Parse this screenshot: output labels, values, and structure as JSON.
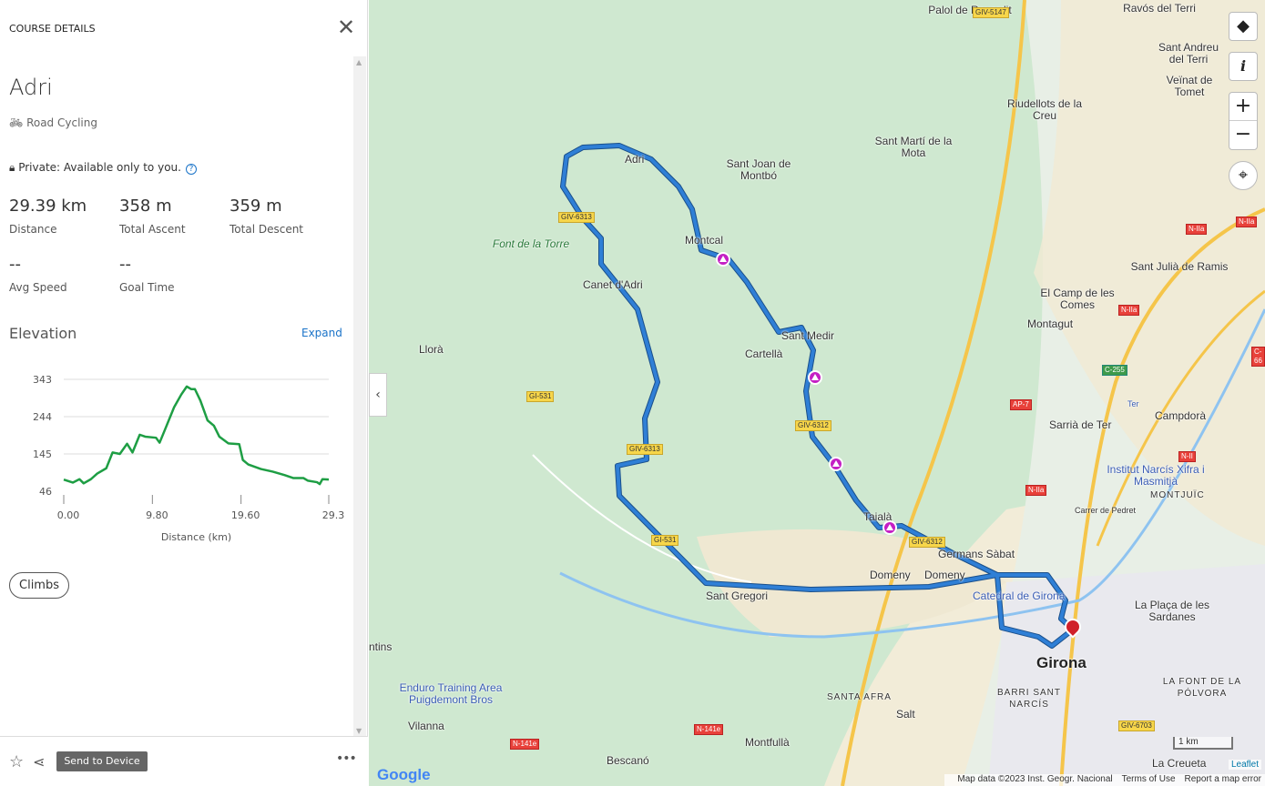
{
  "panel": {
    "header": "COURSE DETAILS",
    "title": "Adri",
    "sport": "Road Cycling",
    "privacy": "Private: Available only to you.",
    "stats": [
      {
        "value": "29.39 km",
        "label": "Distance"
      },
      {
        "value": "358 m",
        "label": "Total Ascent"
      },
      {
        "value": "359 m",
        "label": "Total Descent"
      },
      {
        "value": "--",
        "label": "Avg Speed"
      },
      {
        "value": "--",
        "label": "Goal Time"
      }
    ],
    "elevation_title": "Elevation",
    "expand": "Expand",
    "climbs": "Climbs",
    "send_to_device": "Send to Device"
  },
  "chart_data": {
    "type": "line",
    "xlabel": "Distance (km)",
    "ylabel": "",
    "xlim": [
      0,
      29.3
    ],
    "ylim": [
      46,
      343
    ],
    "x_ticks": [
      "0.00",
      "9.80",
      "19.60",
      "29.3"
    ],
    "y_ticks": [
      "343",
      "244",
      "145",
      "46"
    ],
    "color": "#1e9e44",
    "grid": true,
    "x": [
      0,
      1.0,
      1.74,
      2.2,
      3.0,
      3.7,
      4.7,
      5.4,
      6.2,
      7.0,
      7.6,
      8.4,
      9.0,
      10.2,
      10.6,
      11.2,
      12.2,
      13.0,
      13.6,
      14.1,
      14.5,
      15.1,
      15.9,
      16.6,
      17.2,
      18.2,
      19.4,
      19.8,
      20.4,
      21.8,
      23.1,
      24.4,
      25.4,
      26.5,
      27.0,
      28.0,
      28.3,
      28.6,
      29.3
    ],
    "y": [
      77,
      69,
      78,
      67,
      78,
      93,
      107,
      149,
      145,
      172,
      149,
      196,
      191,
      188,
      175,
      210,
      269,
      303,
      324,
      317,
      317,
      287,
      234,
      220,
      191,
      173,
      171,
      129,
      117,
      105,
      98,
      89,
      81,
      81,
      74,
      70,
      65,
      78,
      77
    ]
  },
  "map": {
    "labels": [
      "Palol de Revardit",
      "Ravós del Terri",
      "Sant Andreu del Terri",
      "Veïnat de Tomet",
      "Riudellots de la Creu",
      "Sant Martí de la Mota",
      "Sant Joan de Montbó",
      "Adri",
      "Montcal",
      "Font de la Torre",
      "Canet d'Adri",
      "Llorà",
      "Sant Medir",
      "Cartellà",
      "El Camp de les Comes",
      "Montagut",
      "Sant Julià de Ramis",
      "Sarrià de Ter",
      "Campdorà",
      "Institut Narcís Xifra i Masmitjà",
      "Taialà",
      "Germans Sàbat",
      "Domeny",
      "Domeny",
      "Sant Gregori",
      "Catedral de Girona",
      "La Plaça de les Sardanes",
      "MONTJUÏC",
      "Girona",
      "SANTA AFRA",
      "BARRI SANT NARCÍS",
      "Salt",
      "LA FONT DE LA PÓLVORA",
      "Enduro Training Area Puigdemont Bros",
      "Vilanna",
      "Montfullà",
      "Bescanó",
      "La Creueta",
      "ntins",
      "Carrer de Pedret",
      "Ter"
    ],
    "roads": [
      "GIV-5147",
      "GIV-6313",
      "GI-531",
      "GIV-6313",
      "GI-531",
      "GIV-6312",
      "GIV-6312",
      "N-IIa",
      "N-IIa",
      "N-IIa",
      "AP-7",
      "C-255",
      "N-II",
      "N-IIa",
      "N-141e",
      "N-141e",
      "GIV-6703",
      "C-66"
    ],
    "scale": "1 km",
    "leaflet": "Leaflet",
    "google": "Google",
    "attribution": [
      "Map data ©2023 Inst. Geogr. Nacional",
      "Terms of Use",
      "Report a map error"
    ],
    "route_color": "#2f7fd6",
    "climb_color": "#c41fc4",
    "finish_color": "#d0202a"
  }
}
